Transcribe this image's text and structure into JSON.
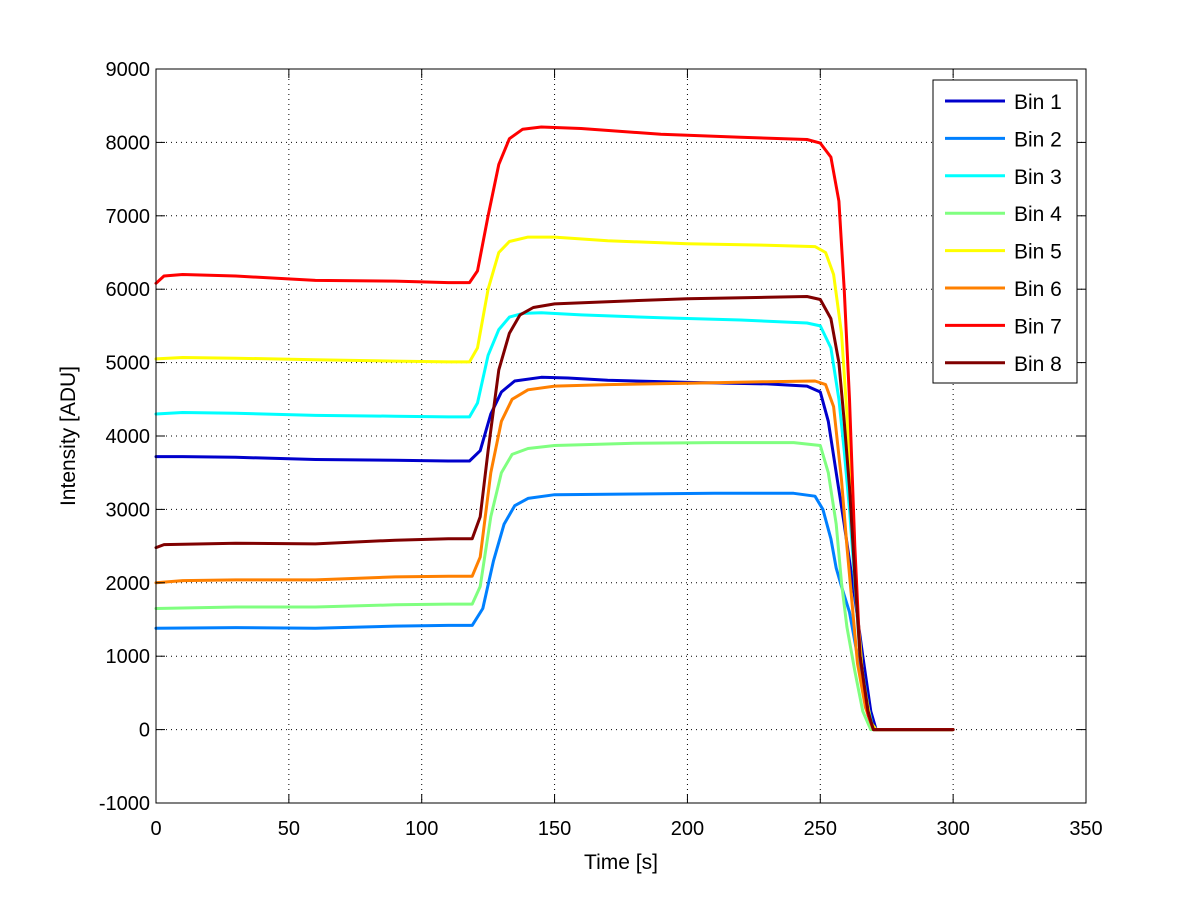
{
  "chart_data": {
    "type": "line",
    "title": "",
    "xlabel": "Time [s]",
    "ylabel": "Intensity [ADU]",
    "xlim": [
      0,
      350
    ],
    "ylim": [
      -1000,
      9000
    ],
    "xticks": [
      "0",
      "50",
      "100",
      "150",
      "200",
      "250",
      "300",
      "350"
    ],
    "yticks": [
      "-1000",
      "0",
      "1000",
      "2000",
      "3000",
      "4000",
      "5000",
      "6000",
      "7000",
      "8000",
      "9000"
    ],
    "grid": true,
    "legend_position": "top-right",
    "series": [
      {
        "name": "Bin 1",
        "color": "#0000cc",
        "points": [
          [
            0,
            3720
          ],
          [
            10,
            3720
          ],
          [
            30,
            3710
          ],
          [
            60,
            3680
          ],
          [
            90,
            3670
          ],
          [
            110,
            3660
          ],
          [
            118,
            3660
          ],
          [
            122,
            3800
          ],
          [
            126,
            4300
          ],
          [
            130,
            4600
          ],
          [
            135,
            4750
          ],
          [
            145,
            4800
          ],
          [
            155,
            4790
          ],
          [
            170,
            4760
          ],
          [
            200,
            4730
          ],
          [
            230,
            4710
          ],
          [
            245,
            4680
          ],
          [
            250,
            4600
          ],
          [
            253,
            4200
          ],
          [
            256,
            3500
          ],
          [
            259,
            2800
          ],
          [
            261,
            2300
          ],
          [
            263,
            1800
          ],
          [
            266,
            1000
          ],
          [
            269,
            250
          ],
          [
            271,
            0
          ],
          [
            300,
            0
          ]
        ]
      },
      {
        "name": "Bin 2",
        "color": "#0080ff",
        "points": [
          [
            0,
            1380
          ],
          [
            30,
            1390
          ],
          [
            60,
            1380
          ],
          [
            90,
            1410
          ],
          [
            110,
            1420
          ],
          [
            119,
            1420
          ],
          [
            123,
            1650
          ],
          [
            127,
            2300
          ],
          [
            131,
            2800
          ],
          [
            135,
            3050
          ],
          [
            140,
            3150
          ],
          [
            150,
            3200
          ],
          [
            180,
            3210
          ],
          [
            210,
            3220
          ],
          [
            240,
            3220
          ],
          [
            248,
            3180
          ],
          [
            251,
            3000
          ],
          [
            254,
            2600
          ],
          [
            256,
            2200
          ],
          [
            258,
            1950
          ],
          [
            261,
            1600
          ],
          [
            264,
            1000
          ],
          [
            267,
            400
          ],
          [
            270,
            0
          ],
          [
            300,
            0
          ]
        ]
      },
      {
        "name": "Bin 3",
        "color": "#00ffff",
        "points": [
          [
            0,
            4300
          ],
          [
            10,
            4320
          ],
          [
            30,
            4310
          ],
          [
            60,
            4280
          ],
          [
            90,
            4270
          ],
          [
            110,
            4260
          ],
          [
            118,
            4260
          ],
          [
            121,
            4450
          ],
          [
            125,
            5100
          ],
          [
            129,
            5450
          ],
          [
            133,
            5620
          ],
          [
            138,
            5670
          ],
          [
            145,
            5680
          ],
          [
            160,
            5650
          ],
          [
            190,
            5610
          ],
          [
            220,
            5580
          ],
          [
            245,
            5540
          ],
          [
            250,
            5500
          ],
          [
            254,
            5200
          ],
          [
            257,
            4500
          ],
          [
            259,
            3800
          ],
          [
            261,
            3000
          ],
          [
            263,
            2000
          ],
          [
            265,
            1000
          ],
          [
            268,
            300
          ],
          [
            270,
            0
          ],
          [
            300,
            0
          ]
        ]
      },
      {
        "name": "Bin 4",
        "color": "#80ff80",
        "points": [
          [
            0,
            1650
          ],
          [
            30,
            1670
          ],
          [
            60,
            1670
          ],
          [
            90,
            1700
          ],
          [
            110,
            1710
          ],
          [
            119,
            1710
          ],
          [
            122,
            1950
          ],
          [
            126,
            2900
          ],
          [
            130,
            3500
          ],
          [
            134,
            3750
          ],
          [
            140,
            3830
          ],
          [
            150,
            3870
          ],
          [
            180,
            3900
          ],
          [
            210,
            3910
          ],
          [
            240,
            3910
          ],
          [
            250,
            3870
          ],
          [
            253,
            3500
          ],
          [
            256,
            2800
          ],
          [
            258,
            2000
          ],
          [
            260,
            1400
          ],
          [
            263,
            800
          ],
          [
            266,
            250
          ],
          [
            269,
            0
          ],
          [
            300,
            0
          ]
        ]
      },
      {
        "name": "Bin 5",
        "color": "#ffff00",
        "points": [
          [
            0,
            5050
          ],
          [
            10,
            5070
          ],
          [
            30,
            5060
          ],
          [
            60,
            5040
          ],
          [
            90,
            5020
          ],
          [
            110,
            5010
          ],
          [
            118,
            5010
          ],
          [
            121,
            5200
          ],
          [
            125,
            6000
          ],
          [
            129,
            6500
          ],
          [
            133,
            6650
          ],
          [
            140,
            6710
          ],
          [
            150,
            6710
          ],
          [
            170,
            6660
          ],
          [
            200,
            6620
          ],
          [
            230,
            6600
          ],
          [
            248,
            6580
          ],
          [
            252,
            6500
          ],
          [
            255,
            6200
          ],
          [
            258,
            5400
          ],
          [
            260,
            4300
          ],
          [
            262,
            2900
          ],
          [
            264,
            1600
          ],
          [
            266,
            700
          ],
          [
            269,
            100
          ],
          [
            271,
            0
          ],
          [
            300,
            0
          ]
        ]
      },
      {
        "name": "Bin 6",
        "color": "#ff8000",
        "points": [
          [
            0,
            2000
          ],
          [
            10,
            2030
          ],
          [
            30,
            2040
          ],
          [
            60,
            2040
          ],
          [
            90,
            2080
          ],
          [
            110,
            2090
          ],
          [
            119,
            2090
          ],
          [
            122,
            2350
          ],
          [
            126,
            3500
          ],
          [
            130,
            4200
          ],
          [
            134,
            4500
          ],
          [
            140,
            4630
          ],
          [
            150,
            4680
          ],
          [
            170,
            4700
          ],
          [
            200,
            4720
          ],
          [
            230,
            4740
          ],
          [
            248,
            4750
          ],
          [
            252,
            4700
          ],
          [
            255,
            4400
          ],
          [
            258,
            3400
          ],
          [
            260,
            2500
          ],
          [
            262,
            1700
          ],
          [
            264,
            900
          ],
          [
            267,
            300
          ],
          [
            270,
            0
          ],
          [
            300,
            0
          ]
        ]
      },
      {
        "name": "Bin 7",
        "color": "#ff0000",
        "points": [
          [
            0,
            6080
          ],
          [
            3,
            6180
          ],
          [
            10,
            6200
          ],
          [
            30,
            6180
          ],
          [
            60,
            6120
          ],
          [
            90,
            6110
          ],
          [
            110,
            6090
          ],
          [
            118,
            6090
          ],
          [
            121,
            6250
          ],
          [
            125,
            7000
          ],
          [
            129,
            7700
          ],
          [
            133,
            8050
          ],
          [
            138,
            8180
          ],
          [
            145,
            8210
          ],
          [
            160,
            8190
          ],
          [
            190,
            8110
          ],
          [
            220,
            8070
          ],
          [
            245,
            8040
          ],
          [
            250,
            7990
          ],
          [
            254,
            7800
          ],
          [
            257,
            7200
          ],
          [
            259,
            6000
          ],
          [
            261,
            4500
          ],
          [
            263,
            2500
          ],
          [
            265,
            1000
          ],
          [
            268,
            200
          ],
          [
            270,
            0
          ],
          [
            300,
            0
          ]
        ]
      },
      {
        "name": "Bin 8",
        "color": "#800000",
        "points": [
          [
            0,
            2480
          ],
          [
            3,
            2520
          ],
          [
            30,
            2540
          ],
          [
            60,
            2530
          ],
          [
            90,
            2580
          ],
          [
            110,
            2600
          ],
          [
            119,
            2600
          ],
          [
            122,
            2900
          ],
          [
            125,
            3800
          ],
          [
            129,
            4900
          ],
          [
            133,
            5400
          ],
          [
            137,
            5650
          ],
          [
            142,
            5750
          ],
          [
            150,
            5800
          ],
          [
            170,
            5830
          ],
          [
            200,
            5870
          ],
          [
            230,
            5890
          ],
          [
            245,
            5900
          ],
          [
            250,
            5860
          ],
          [
            254,
            5600
          ],
          [
            257,
            5000
          ],
          [
            259,
            4200
          ],
          [
            261,
            3300
          ],
          [
            263,
            2100
          ],
          [
            265,
            1000
          ],
          [
            268,
            250
          ],
          [
            270,
            0
          ],
          [
            300,
            0
          ]
        ]
      }
    ]
  }
}
